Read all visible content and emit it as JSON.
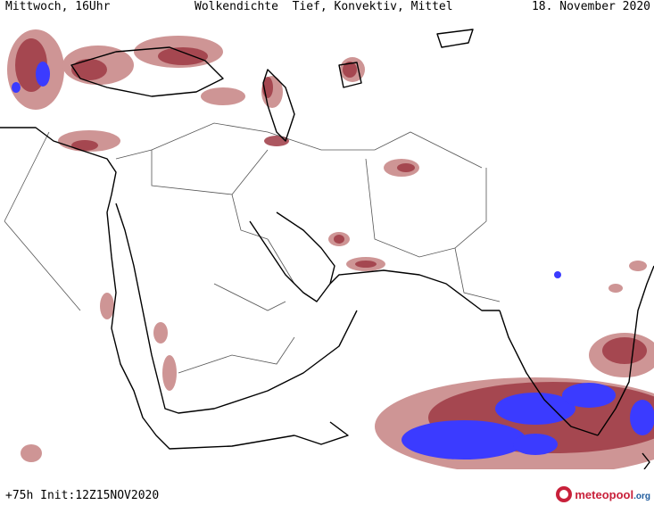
{
  "header": {
    "left": "Mittwoch, 16Uhr",
    "center": "Wolkendichte  Tief, Konvektiv, Mittel",
    "right": "18. November 2020"
  },
  "footer": {
    "left": "+75h Init:12Z15NOV2020",
    "logo_main": "meteopool",
    "logo_tld": ".org"
  },
  "colors": {
    "cloud_light": "#c98a8a",
    "cloud_medium": "#9e3a44",
    "cloud_dense": "#3b3bff",
    "coastline": "#000000",
    "border": "#555555"
  },
  "icons": {
    "logo": "meteopool-logo-icon"
  }
}
